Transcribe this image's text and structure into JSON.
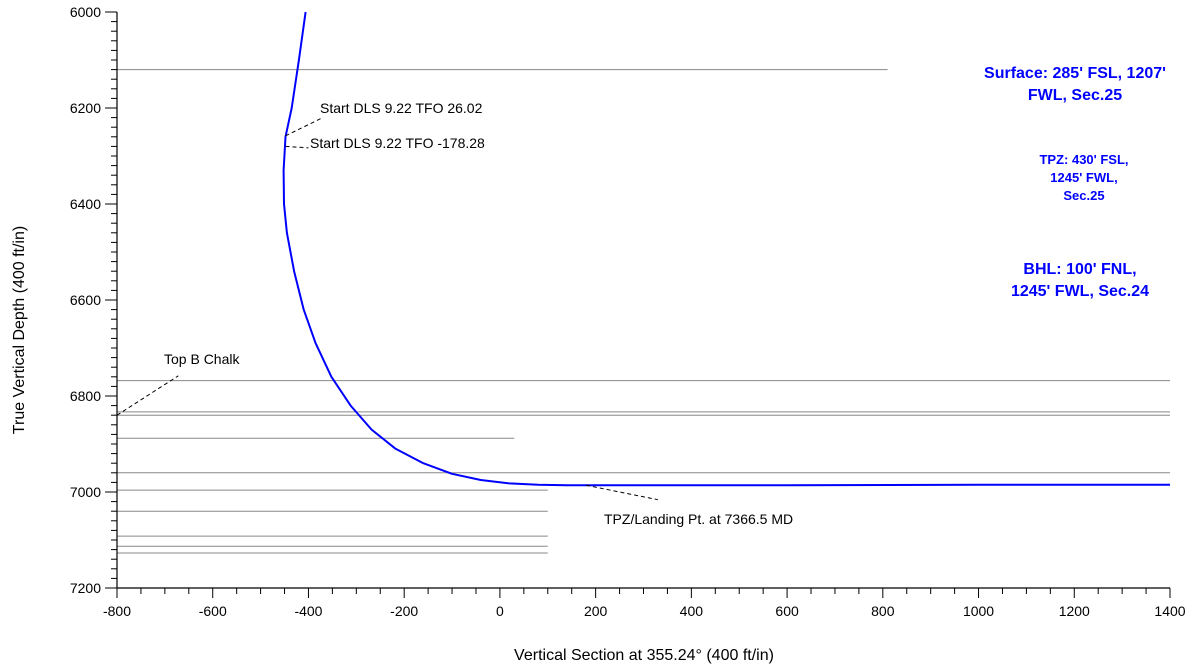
{
  "chart_data": {
    "type": "line",
    "title": "",
    "xlabel": "Vertical Section at 355.24° (400 ft/in)",
    "ylabel": "True Vertical Depth (400 ft/in)",
    "xlim": [
      -800,
      1400
    ],
    "ylim": [
      7200,
      6000
    ],
    "y_inverted": true,
    "x_ticks": [
      -800,
      -600,
      -400,
      -200,
      0,
      200,
      400,
      600,
      800,
      1000,
      1200,
      1400
    ],
    "x_tick_labels": [
      "-800",
      "-600",
      "-400",
      "-200",
      "0",
      "200",
      "400",
      "600",
      "800",
      "1000",
      "1200",
      "1400"
    ],
    "y_ticks": [
      6000,
      6200,
      6400,
      6600,
      6800,
      7000,
      7200
    ],
    "y_tick_labels": [
      "6000",
      "6200",
      "6400",
      "6600",
      "6800",
      "7000",
      "7200"
    ],
    "grid": false,
    "series": [
      {
        "color": "#0000ff",
        "x": [
          -406,
          -420,
          -435,
          -448,
          -452,
          -451,
          -445,
          -430,
          -410,
          -385,
          -352,
          -312,
          -268,
          -218,
          -160,
          -100,
          -40,
          20,
          80,
          140,
          180,
          600,
          1000,
          1400
        ],
        "y": [
          6000,
          6100,
          6200,
          6260,
          6330,
          6400,
          6460,
          6540,
          6620,
          6690,
          6760,
          6820,
          6870,
          6910,
          6940,
          6962,
          6975,
          6982,
          6985,
          6986,
          6986,
          6986,
          6985,
          6985
        ]
      }
    ],
    "formation_lines": [
      {
        "tvd": 6120,
        "x_end": 810
      },
      {
        "tvd": 6768,
        "x_end": 1400
      },
      {
        "tvd": 6833,
        "x_end": 1400
      },
      {
        "tvd": 6840,
        "x_end": 1400
      },
      {
        "tvd": 6888,
        "x_end": 30
      },
      {
        "tvd": 6960,
        "x_end": 1400
      },
      {
        "tvd": 6996,
        "x_end": 100
      },
      {
        "tvd": 7040,
        "x_end": 100
      },
      {
        "tvd": 7092,
        "x_end": 100
      },
      {
        "tvd": 7113,
        "x_end": 100
      },
      {
        "tvd": 7127,
        "x_end": 100
      }
    ],
    "annotations": [
      {
        "text": "Start DLS 9.22 TFO 26.02",
        "anchor": [
          -448,
          6258
        ],
        "label_at": [
          -370,
          6220
        ]
      },
      {
        "text": "Start DLS 9.22 TFO -178.28",
        "anchor": [
          -448,
          6280
        ],
        "label_at": [
          -400,
          6283
        ]
      },
      {
        "text": "Top B Chalk",
        "anchor": [
          -800,
          6840
        ],
        "label_at": [
          -672,
          6758
        ]
      },
      {
        "text": "TPZ/Landing Pt. at 7366.5 MD",
        "anchor": [
          180,
          6986
        ],
        "label_at": [
          330,
          7016
        ]
      }
    ],
    "info_boxes": [
      {
        "lines": [
          "Surface: 285' FSL, 1207'",
          "FWL, Sec.25"
        ],
        "size": 16
      },
      {
        "lines": [
          "TPZ: 430' FSL,",
          "1245' FWL,",
          "Sec.25"
        ],
        "size": 13
      },
      {
        "lines": [
          "BHL: 100' FNL,",
          "1245' FWL, Sec.24"
        ],
        "size": 16
      }
    ]
  }
}
